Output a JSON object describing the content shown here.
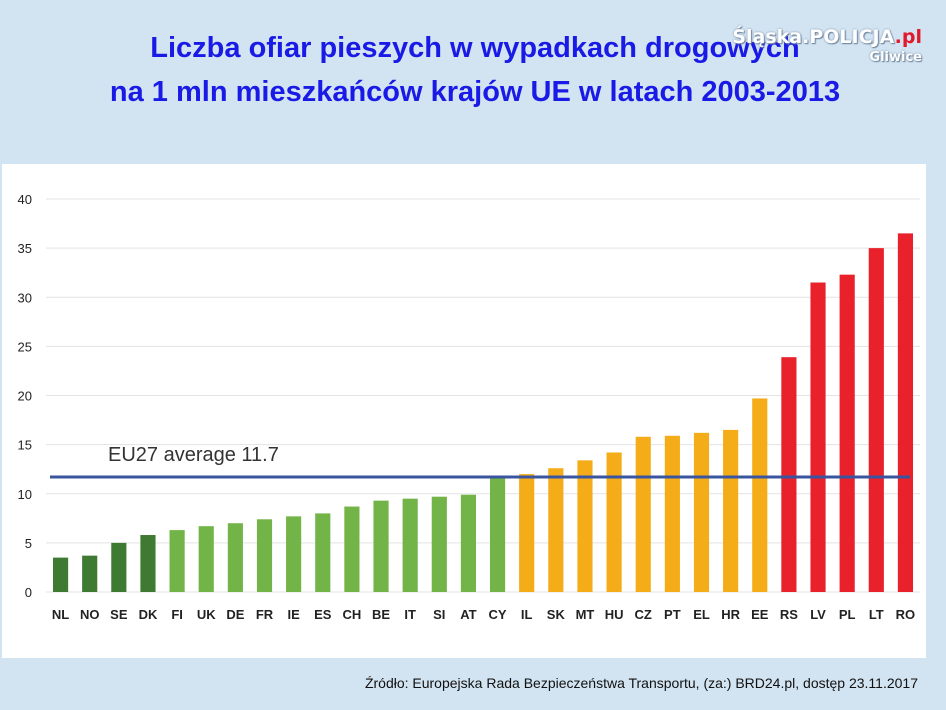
{
  "title": {
    "line1": "Liczba ofiar pieszych w wypadkach drogowych",
    "line2": "na 1 mln mieszkańców krajów UE w latach 2003-2013"
  },
  "logo": {
    "brand": "Śląska.POLICJA",
    "tld": ".pl",
    "city": "Gliwice"
  },
  "source": "Źródło: Europejska Rada Bezpieczeństwa Transportu, (za:) BRD24.pl, dostęp 23.11.2017",
  "colors": {
    "dark_green": "#3f7a33",
    "green": "#72b447",
    "orange": "#f5ac19",
    "red": "#e8212b",
    "average_line": "#3a55a0",
    "grid": "#e3e3e3"
  },
  "chart_data": {
    "type": "bar",
    "categories": [
      "NL",
      "NO",
      "SE",
      "DK",
      "FI",
      "UK",
      "DE",
      "FR",
      "IE",
      "ES",
      "CH",
      "BE",
      "IT",
      "SI",
      "AT",
      "CY",
      "IL",
      "SK",
      "MT",
      "HU",
      "CZ",
      "PT",
      "EL",
      "HR",
      "EE",
      "RS",
      "LV",
      "PL",
      "LT",
      "RO"
    ],
    "values": [
      3.5,
      3.7,
      5.0,
      5.8,
      6.3,
      6.7,
      7.0,
      7.4,
      7.7,
      8.0,
      8.7,
      9.3,
      9.5,
      9.7,
      9.9,
      11.7,
      12.0,
      12.6,
      13.4,
      14.2,
      15.8,
      15.9,
      16.2,
      16.5,
      19.7,
      23.9,
      31.5,
      32.3,
      35.0,
      36.5
    ],
    "color_groups": [
      "dark_green",
      "dark_green",
      "dark_green",
      "dark_green",
      "green",
      "green",
      "green",
      "green",
      "green",
      "green",
      "green",
      "green",
      "green",
      "green",
      "green",
      "green",
      "orange",
      "orange",
      "orange",
      "orange",
      "orange",
      "orange",
      "orange",
      "orange",
      "orange",
      "red",
      "red",
      "red",
      "red",
      "red"
    ],
    "ylim": [
      0,
      40
    ],
    "yticks": [
      0,
      5,
      10,
      15,
      20,
      25,
      30,
      35,
      40
    ],
    "grid": true,
    "reference_line": {
      "value": 11.7,
      "label": "EU27 average 11.7"
    }
  }
}
